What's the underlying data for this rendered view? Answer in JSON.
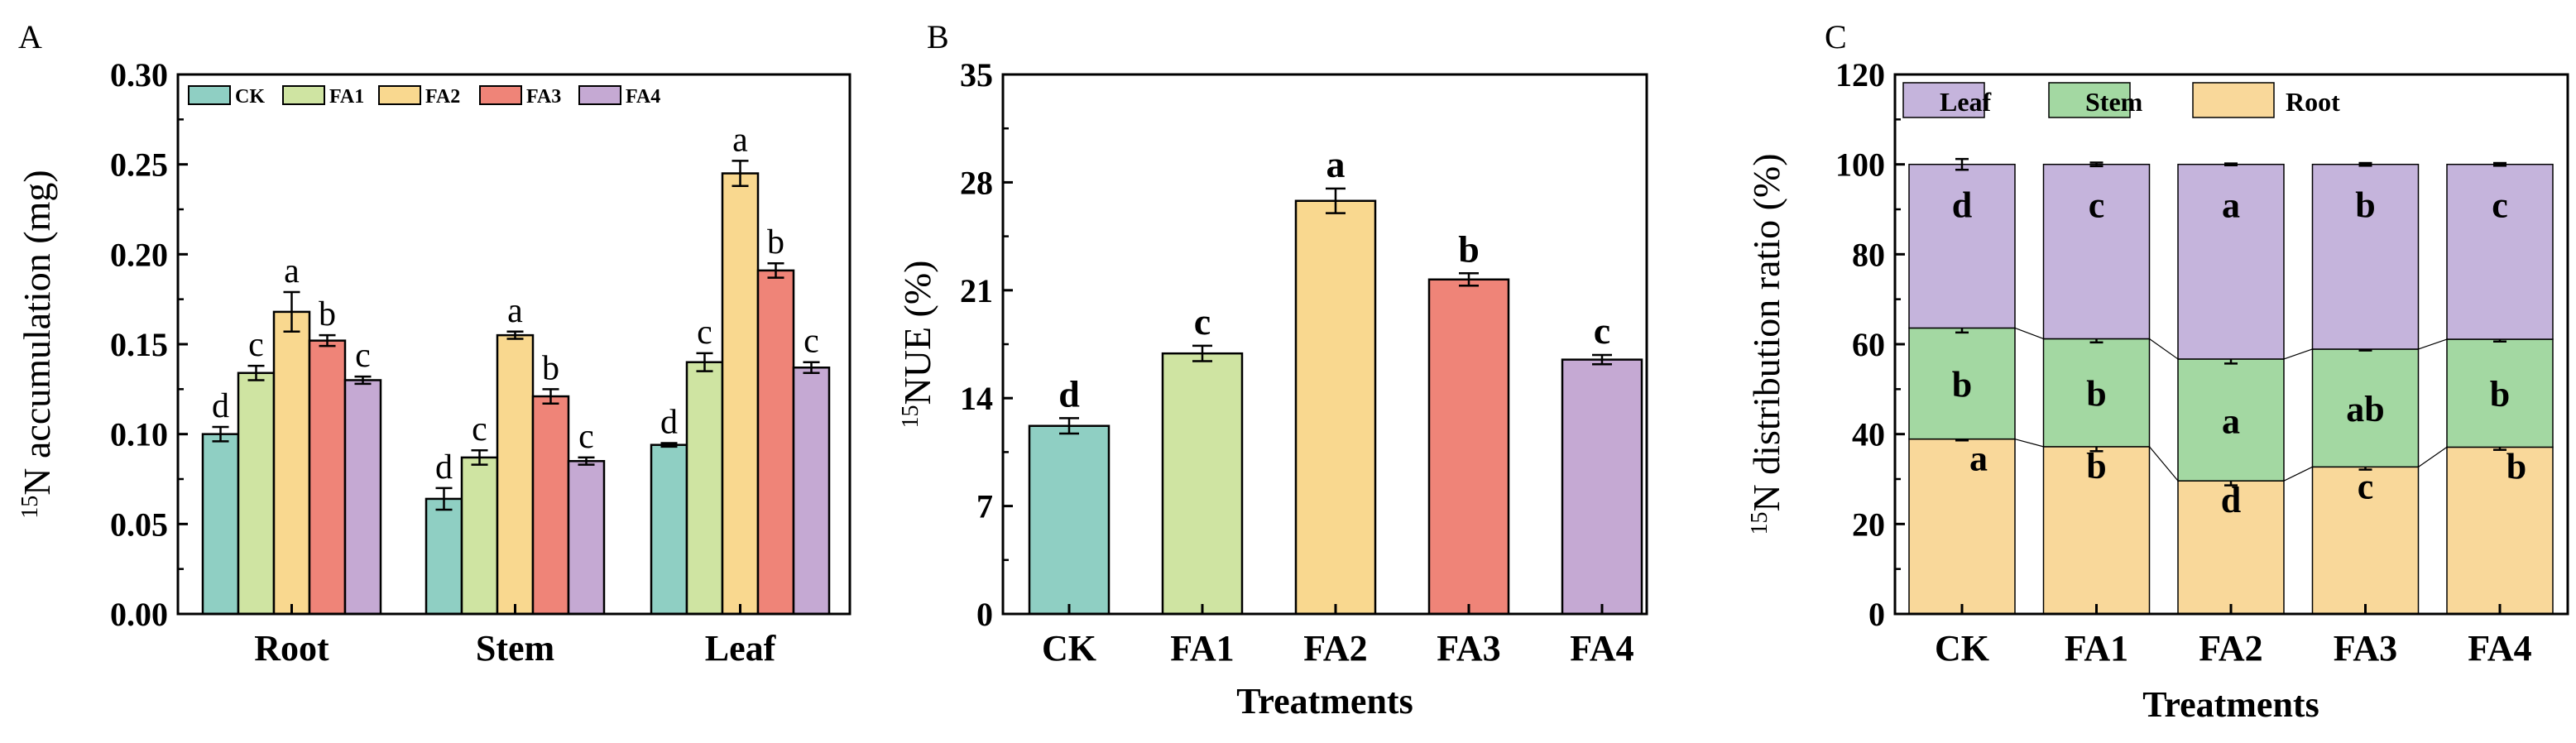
{
  "colors": {
    "CK": "#8fcfc3",
    "FA1": "#cfe4a2",
    "FA2": "#f9d88f",
    "FA3": "#ef8478",
    "FA4": "#c5a9d3",
    "Leaf": "#c5b4dc",
    "Stem": "#a3d8a2",
    "Root": "#f9d89a"
  },
  "chart_data": [
    {
      "panel": "A",
      "type": "bar",
      "title": "",
      "ylabel_sup": "15",
      "ylabel": "N accumulation (mg)",
      "xlabel": "",
      "ylim": [
        0,
        0.3
      ],
      "yticks": [
        "0.00",
        "0.05",
        "0.10",
        "0.15",
        "0.20",
        "0.25",
        "0.30"
      ],
      "categories": [
        "Root",
        "Stem",
        "Leaf"
      ],
      "legend": [
        "CK",
        "FA1",
        "FA2",
        "FA3",
        "FA4"
      ],
      "series": [
        {
          "name": "CK",
          "values": [
            0.1,
            0.064,
            0.094
          ],
          "errors": [
            0.004,
            0.006,
            0.001
          ],
          "letters": [
            "d",
            "d",
            "d"
          ]
        },
        {
          "name": "FA1",
          "values": [
            0.134,
            0.087,
            0.14
          ],
          "errors": [
            0.004,
            0.004,
            0.005
          ],
          "letters": [
            "c",
            "c",
            "c"
          ]
        },
        {
          "name": "FA2",
          "values": [
            0.168,
            0.155,
            0.245
          ],
          "errors": [
            0.011,
            0.002,
            0.007
          ],
          "letters": [
            "a",
            "a",
            "a"
          ]
        },
        {
          "name": "FA3",
          "values": [
            0.152,
            0.121,
            0.191
          ],
          "errors": [
            0.003,
            0.004,
            0.004
          ],
          "letters": [
            "b",
            "b",
            "b"
          ]
        },
        {
          "name": "FA4",
          "values": [
            0.13,
            0.085,
            0.137
          ],
          "errors": [
            0.002,
            0.002,
            0.003
          ],
          "letters": [
            "c",
            "c",
            "c"
          ]
        }
      ]
    },
    {
      "panel": "B",
      "type": "bar",
      "title": "",
      "ylabel_sup": "15",
      "ylabel": "NUE  (%)",
      "xlabel": "Treatments",
      "ylim": [
        0,
        35
      ],
      "yticks": [
        "0",
        "7",
        "14",
        "21",
        "28",
        "35"
      ],
      "categories": [
        "CK",
        "FA1",
        "FA2",
        "FA3",
        "FA4"
      ],
      "values": [
        12.2,
        16.9,
        26.8,
        21.7,
        16.5
      ],
      "errors": [
        0.5,
        0.5,
        0.8,
        0.4,
        0.3
      ],
      "letters": [
        "d",
        "c",
        "a",
        "b",
        "c"
      ]
    },
    {
      "panel": "C",
      "type": "bar",
      "stacked": true,
      "title": "",
      "ylabel_sup": "15",
      "ylabel": "N distribution ratio (%)",
      "xlabel": "Treatments",
      "ylim": [
        0,
        120
      ],
      "yticks": [
        "0",
        "20",
        "40",
        "60",
        "80",
        "100",
        "120"
      ],
      "categories": [
        "CK",
        "FA1",
        "FA2",
        "FA3",
        "FA4"
      ],
      "legend": [
        "Leaf",
        "Stem",
        "Root"
      ],
      "series": [
        {
          "name": "Root",
          "values": [
            38.9,
            37.2,
            29.6,
            32.7,
            37.1
          ],
          "errors": [
            0.3,
            1.0,
            1.0,
            0.6,
            0.6
          ],
          "letters": [
            "a",
            "b",
            "d",
            "c",
            "b"
          ]
        },
        {
          "name": "Stem",
          "values": [
            24.7,
            24.0,
            27.1,
            26.2,
            24.0
          ],
          "errors": [
            1.0,
            0.8,
            1.0,
            0.3,
            0.5
          ],
          "letters": [
            "b",
            "b",
            "a",
            "ab",
            "b"
          ]
        },
        {
          "name": "Leaf",
          "values": [
            36.4,
            38.8,
            43.3,
            41.1,
            38.9
          ],
          "errors": [
            1.2,
            0.4,
            0.2,
            0.3,
            0.3
          ],
          "letters": [
            "d",
            "c",
            "a",
            "b",
            "c"
          ]
        }
      ]
    }
  ],
  "panel_labels": [
    "A",
    "B",
    "C"
  ]
}
